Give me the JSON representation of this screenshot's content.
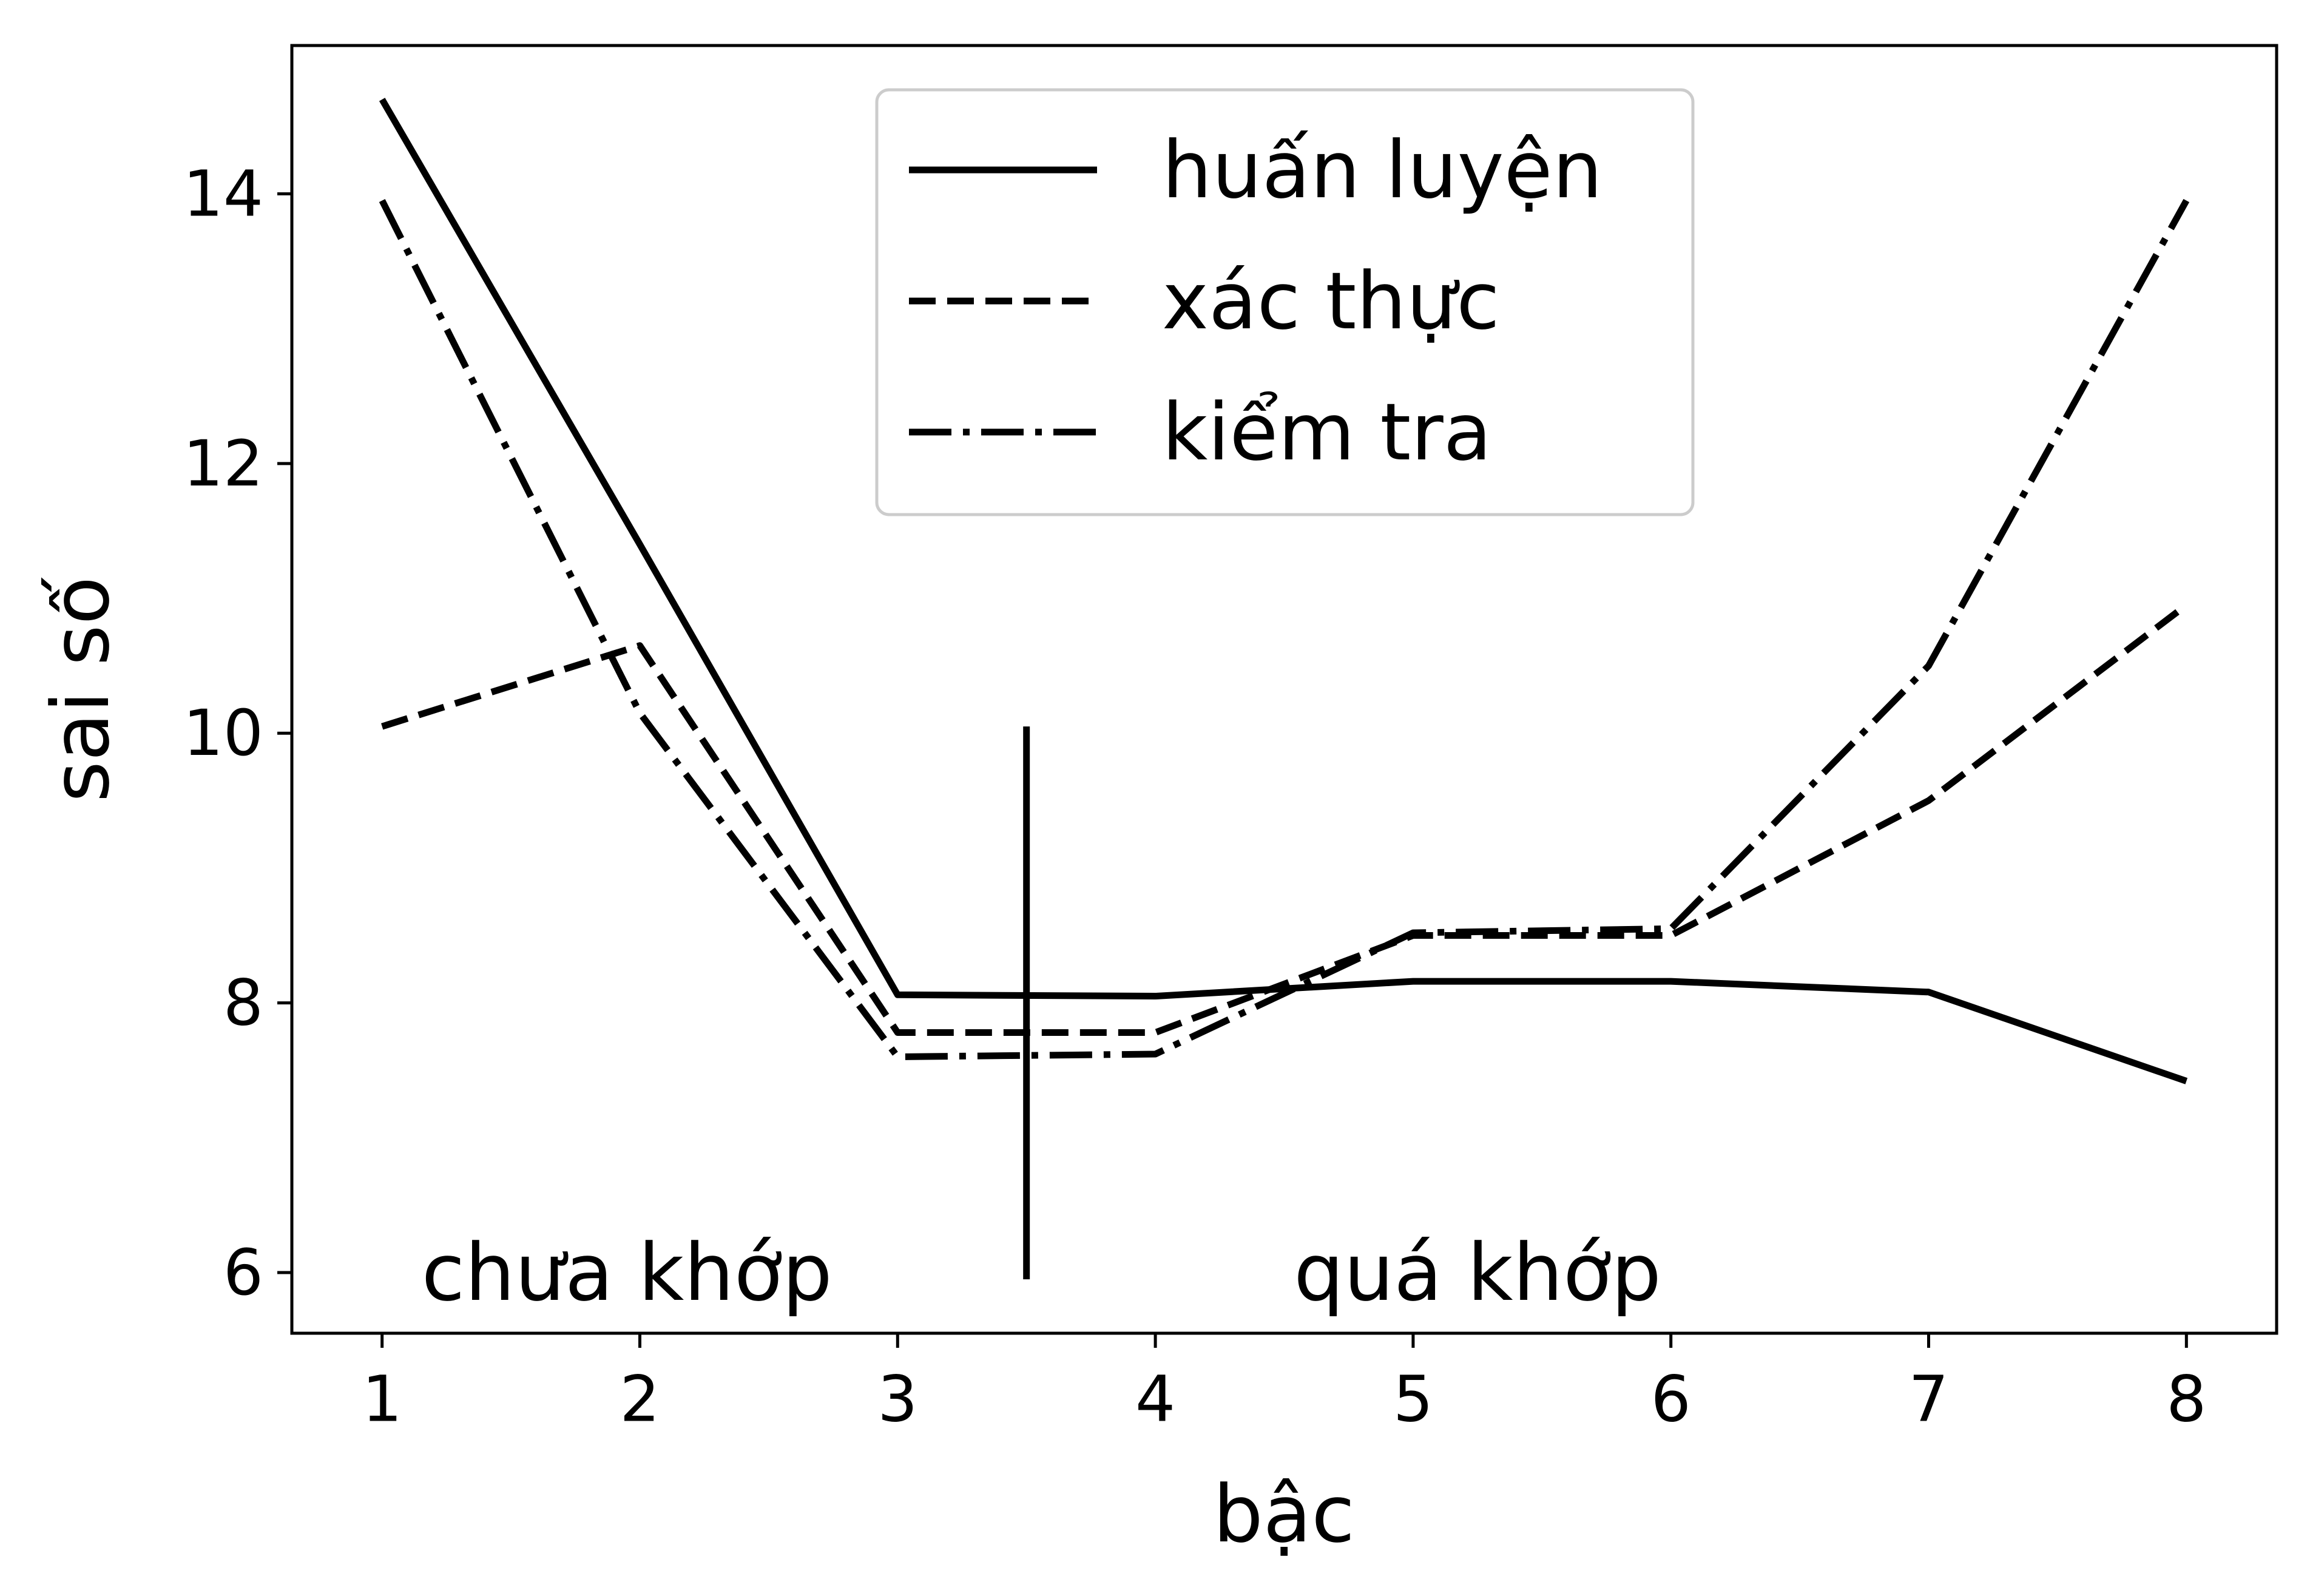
{
  "chart_data": {
    "type": "line",
    "xlabel": "bậc",
    "ylabel": "sai số",
    "x": [
      1,
      2,
      3,
      4,
      5,
      6,
      7,
      8
    ],
    "xlim": [
      0.65,
      8.35
    ],
    "ylim": [
      5.55,
      15.1
    ],
    "xticks": [
      "1",
      "2",
      "3",
      "4",
      "5",
      "6",
      "7",
      "8"
    ],
    "yticks": [
      "6",
      "8",
      "10",
      "12",
      "14"
    ],
    "grid": false,
    "legend_position": "top-center",
    "series": [
      {
        "name": "huấn luyện",
        "style": "solid",
        "values": [
          14.7,
          11.4,
          8.06,
          8.05,
          8.16,
          8.16,
          8.08,
          7.42
        ]
      },
      {
        "name": "xác thực",
        "style": "dashed",
        "values": [
          10.05,
          10.65,
          7.78,
          7.78,
          8.5,
          8.5,
          9.5,
          10.95
        ]
      },
      {
        "name": "kiểm tra",
        "style": "dashdot",
        "values": [
          13.95,
          10.15,
          7.6,
          7.62,
          8.52,
          8.55,
          10.5,
          13.95
        ]
      }
    ],
    "vline": {
      "x": 3.5,
      "ymin": 5.95,
      "ymax": 10.05
    },
    "annotations": [
      {
        "text": "chưa khớp",
        "x": 1.95,
        "y": 6.0
      },
      {
        "text": "quá khớp",
        "x": 5.25,
        "y": 6.0
      }
    ],
    "colors": {
      "line": "#000000",
      "legend_border": "#cccccc",
      "background": "#ffffff"
    }
  }
}
